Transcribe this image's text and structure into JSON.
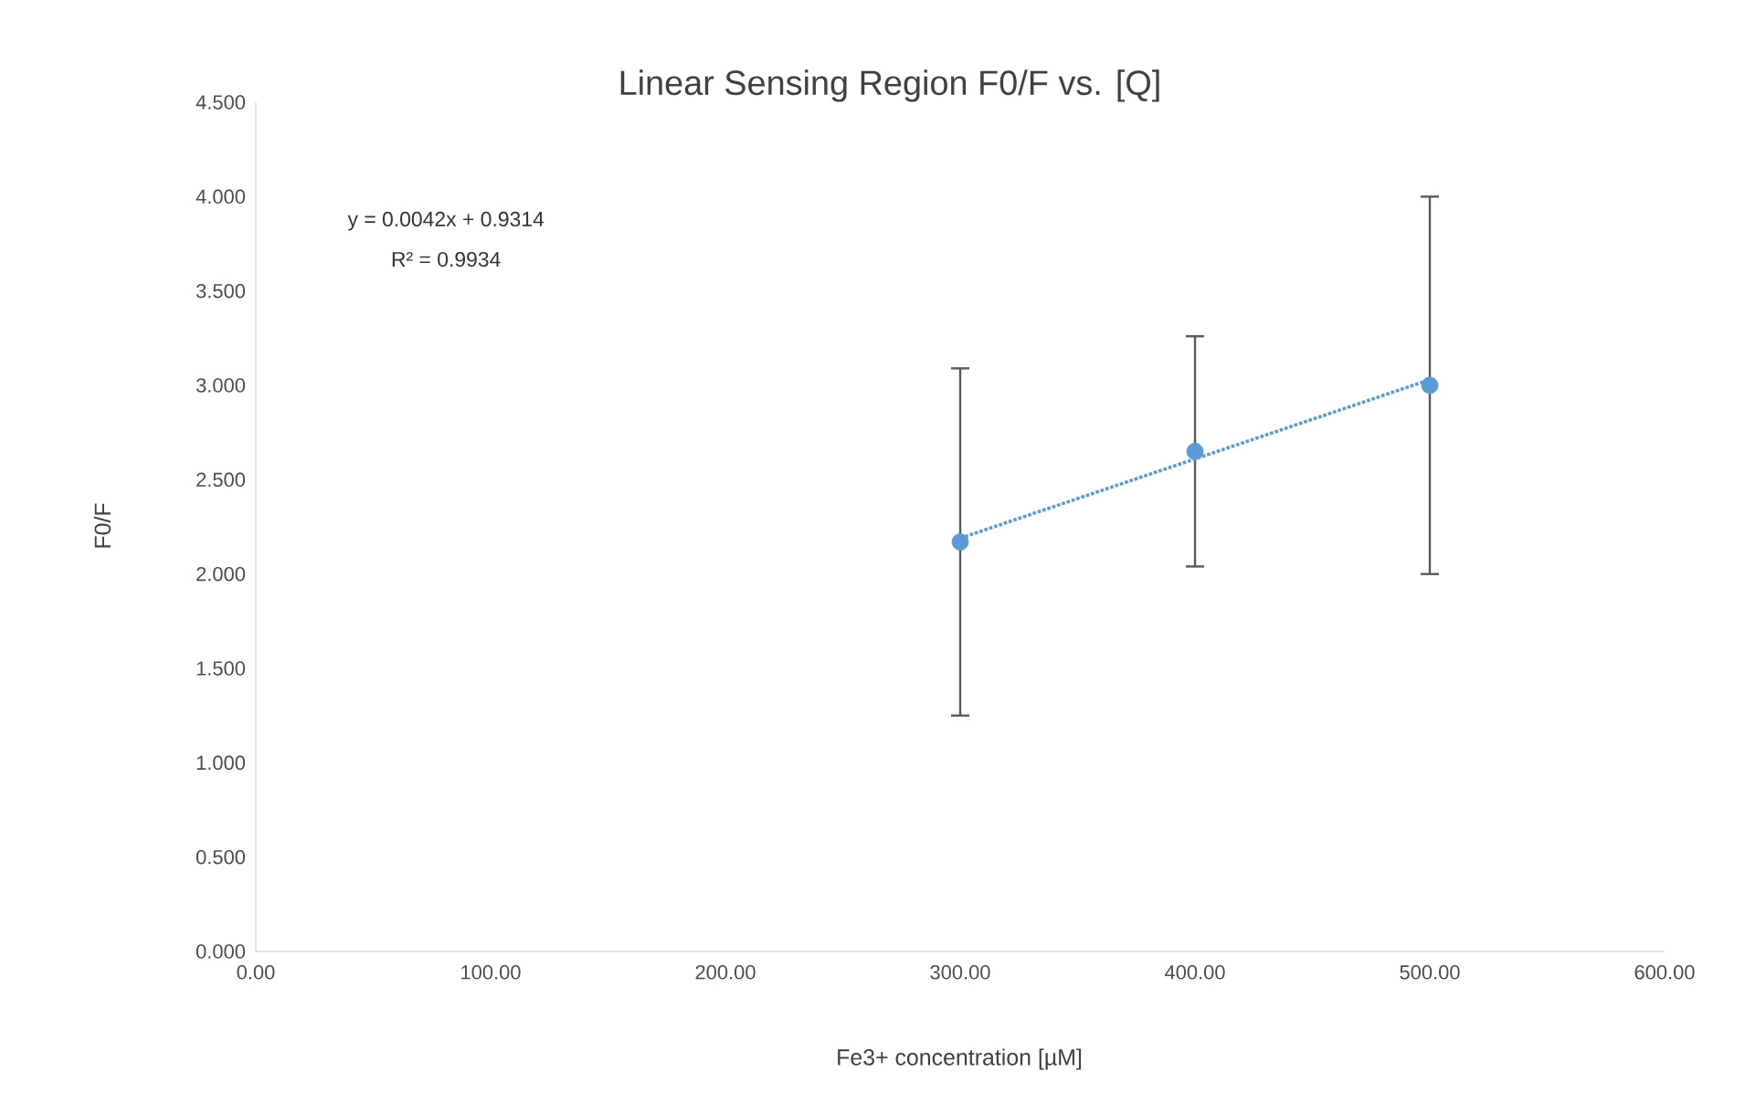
{
  "chart_data": {
    "type": "scatter",
    "title": "Linear Sensing Region F0/F vs. [Q]",
    "xlabel": "Fe3+ concentration [µM]",
    "ylabel": "F0/F",
    "xlim": [
      0,
      600
    ],
    "xticks": [
      {
        "value": 0,
        "label": "0.00"
      },
      {
        "value": 100,
        "label": "100.00"
      },
      {
        "value": 200,
        "label": "200.00"
      },
      {
        "value": 300,
        "label": "300.00"
      },
      {
        "value": 400,
        "label": "400.00"
      },
      {
        "value": 500,
        "label": "500.00"
      },
      {
        "value": 600,
        "label": "600.00"
      }
    ],
    "ylim": [
      0,
      4.5
    ],
    "yticks": [
      {
        "value": 0,
        "label": "0.000"
      },
      {
        "value": 0.5,
        "label": "0.500"
      },
      {
        "value": 1,
        "label": "1.000"
      },
      {
        "value": 1.5,
        "label": "1.500"
      },
      {
        "value": 2,
        "label": "2.000"
      },
      {
        "value": 2.5,
        "label": "2.500"
      },
      {
        "value": 3,
        "label": "3.000"
      },
      {
        "value": 3.5,
        "label": "3.500"
      },
      {
        "value": 4,
        "label": "4.000"
      },
      {
        "value": 4.5,
        "label": "4.500"
      }
    ],
    "series": [
      {
        "color": "#5b9bd5",
        "x": [
          300,
          400,
          500
        ],
        "values": [
          2.17,
          2.65,
          3.0
        ],
        "errors": [
          0.92,
          0.61,
          1.0
        ],
        "marker": "circle"
      },
      {
        "type": "line",
        "color": "#5b9bd5",
        "x": [
          300,
          500
        ],
        "values": [
          2.19,
          3.03
        ],
        "marker": "none",
        "line_style": "dotted"
      }
    ],
    "annotations": [
      "y = 0.0042x + 0.9314",
      "R² = 0.9934"
    ]
  }
}
